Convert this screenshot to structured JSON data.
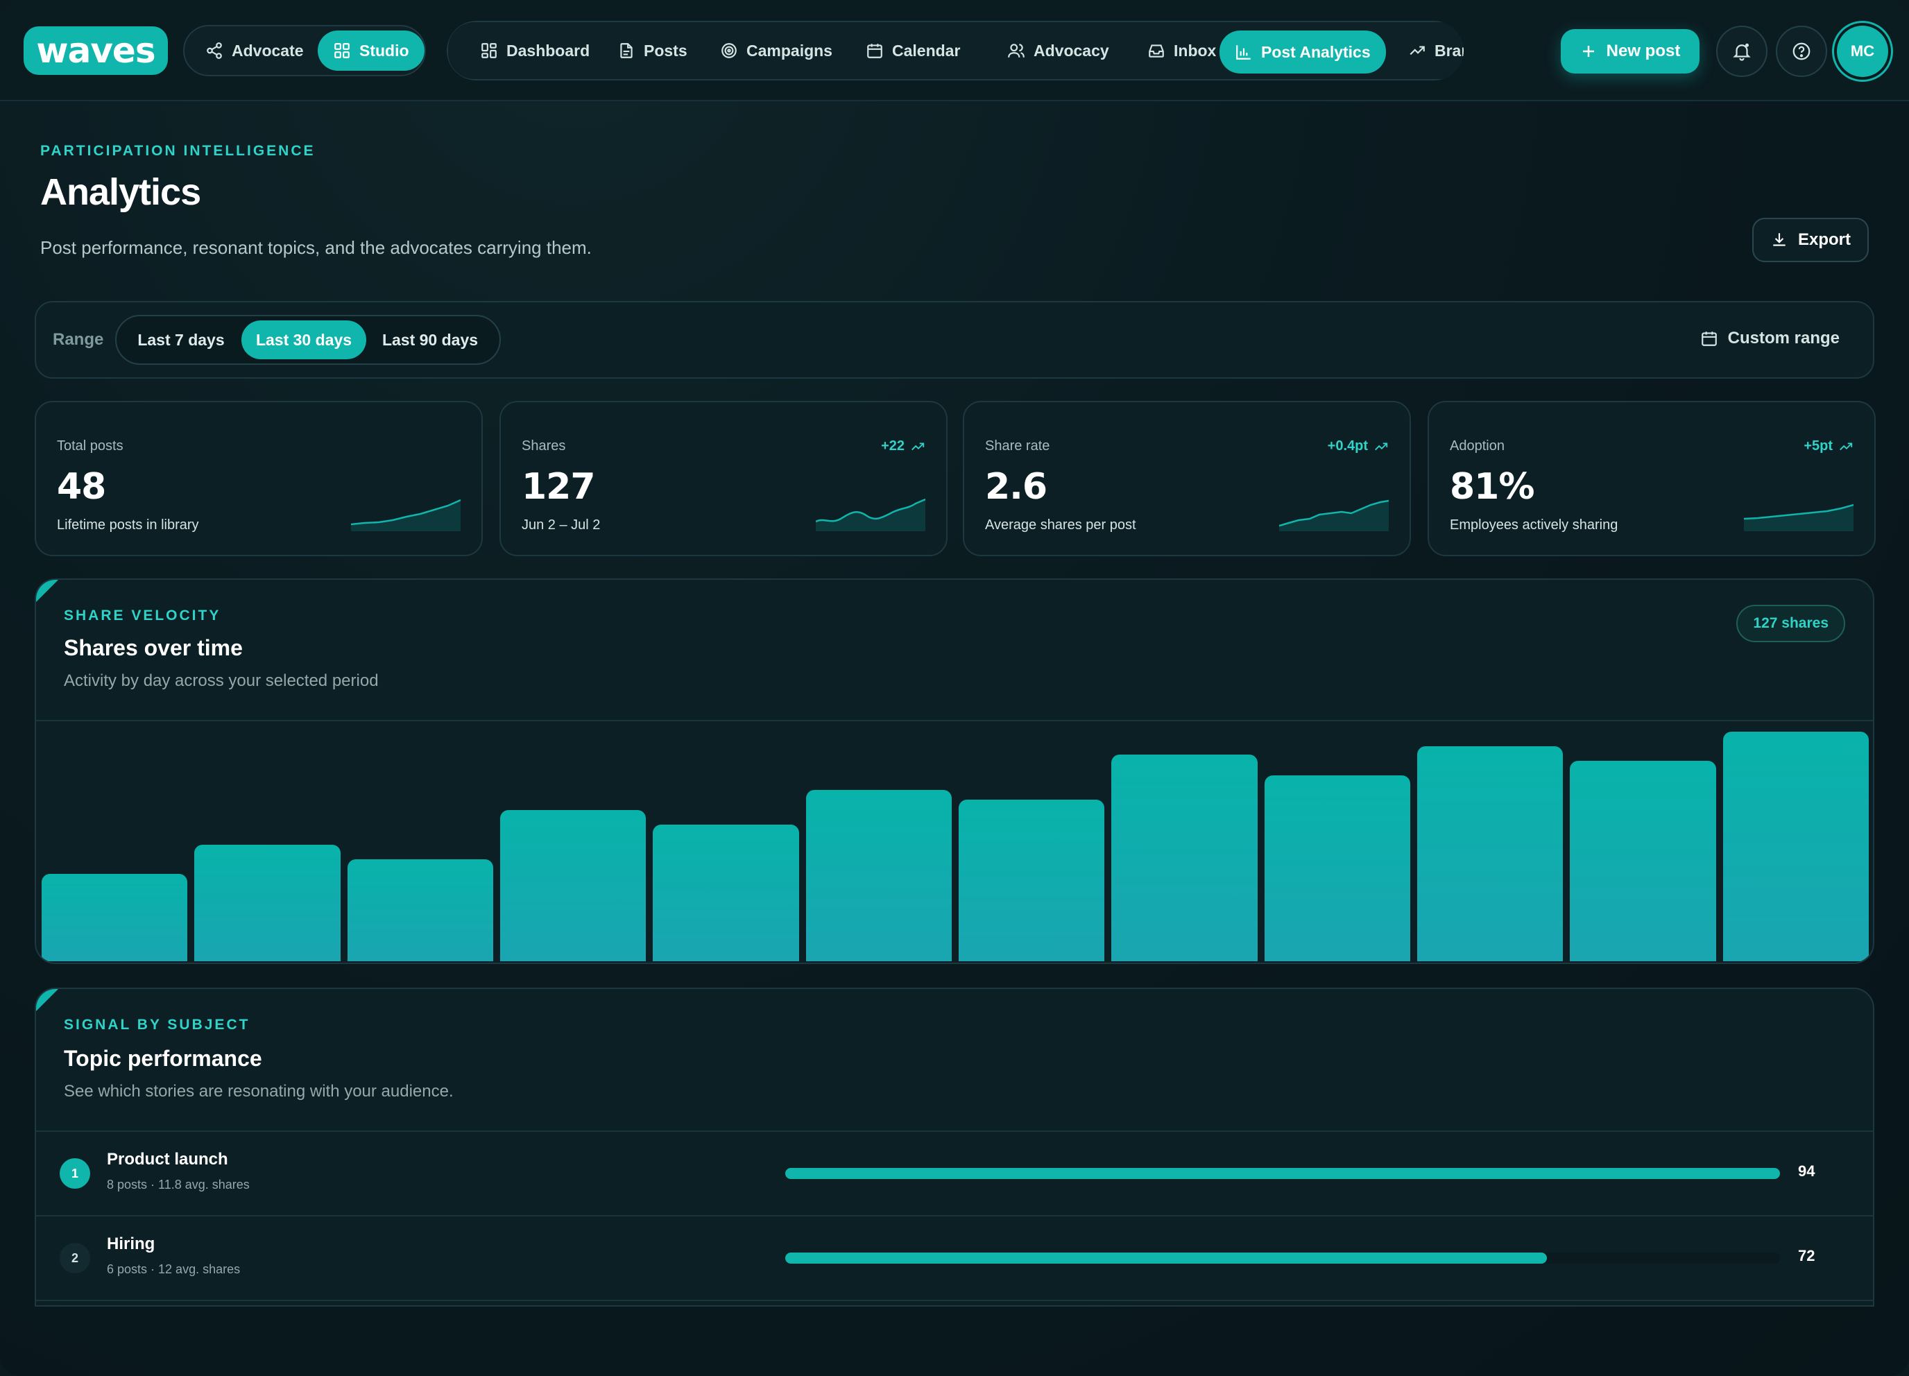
{
  "brand": {
    "logo": "waves",
    "accent": "#10b5ac"
  },
  "workspace": {
    "items": [
      {
        "label": "Advocate",
        "icon": "share-nodes-icon",
        "active": false
      },
      {
        "label": "Studio",
        "icon": "grid-icon",
        "active": true
      }
    ]
  },
  "nav": {
    "items": [
      {
        "label": "Dashboard",
        "icon": "grid-icon",
        "active": false
      },
      {
        "label": "Posts",
        "icon": "document-icon",
        "active": false
      },
      {
        "label": "Campaigns",
        "icon": "target-icon",
        "active": false
      },
      {
        "label": "Calendar",
        "icon": "calendar-icon",
        "active": false
      },
      {
        "label": "Advocacy",
        "icon": "users-icon",
        "active": false
      },
      {
        "label": "Inbox",
        "icon": "inbox-icon",
        "active": false
      },
      {
        "label": "Post Analytics",
        "icon": "bar-chart-icon",
        "active": true
      },
      {
        "label": "Brand",
        "icon": "trend-up-icon",
        "active": false
      }
    ]
  },
  "header_actions": {
    "new_post": "New post",
    "avatar_initials": "MC"
  },
  "page": {
    "eyebrow": "PARTICIPATION INTELLIGENCE",
    "title": "Analytics",
    "subtitle": "Post performance, resonant topics, and the advocates carrying them.",
    "export_label": "Export"
  },
  "range": {
    "label": "Range",
    "options": [
      {
        "label": "Last 7 days",
        "active": false
      },
      {
        "label": "Last 30 days",
        "active": true
      },
      {
        "label": "Last 90 days",
        "active": false
      }
    ],
    "custom_label": "Custom range"
  },
  "stats": [
    {
      "label": "Total posts",
      "value": "48",
      "note": "Lifetime posts in library",
      "delta": ""
    },
    {
      "label": "Shares",
      "value": "127",
      "note": "Jun 2 – Jul 2",
      "delta": "+22"
    },
    {
      "label": "Share rate",
      "value": "2.6",
      "note": "Average shares per post",
      "delta": "+0.4pt"
    },
    {
      "label": "Adoption",
      "value": "81%",
      "note": "Employees actively sharing",
      "delta": "+5pt"
    }
  ],
  "velocity": {
    "eyebrow": "SHARE VELOCITY",
    "title": "Shares over time",
    "subtitle": "Activity by day across your selected period",
    "badge": "127 shares"
  },
  "chart_data": {
    "type": "bar",
    "values": [
      6,
      8,
      7,
      10.4,
      9.4,
      11.8,
      11.1,
      14.2,
      12.8,
      14.8,
      13.8,
      15.8
    ],
    "ylim": [
      0,
      16.5
    ]
  },
  "topics": {
    "eyebrow": "SIGNAL BY SUBJECT",
    "title": "Topic performance",
    "subtitle": "See which stories are resonating with your audience.",
    "rows": [
      {
        "rank": "1",
        "name": "Product launch",
        "meta": "8 posts · 11.8 avg. shares",
        "score": "94",
        "fraction": 1.0
      },
      {
        "rank": "2",
        "name": "Hiring",
        "meta": "6 posts · 12 avg. shares",
        "score": "72",
        "fraction": 0.766
      }
    ]
  }
}
